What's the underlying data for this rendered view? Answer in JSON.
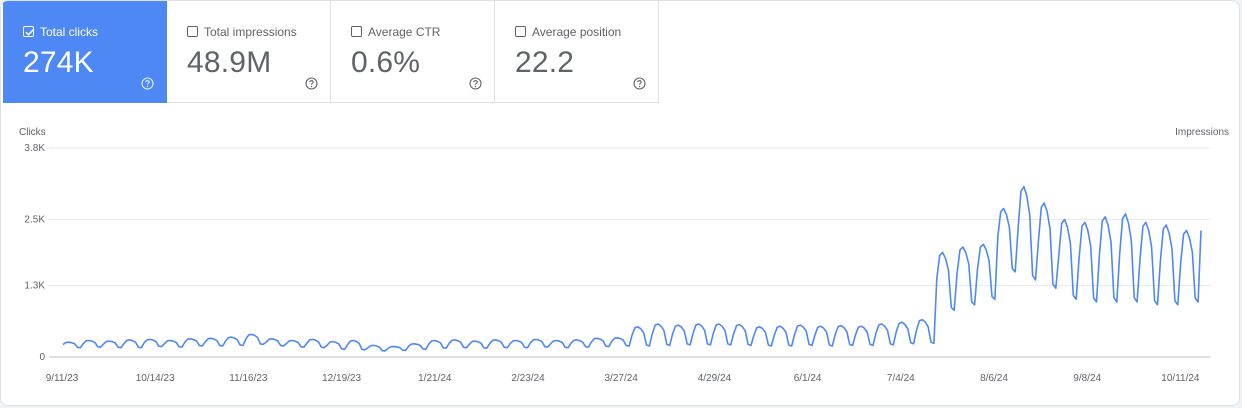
{
  "metrics": [
    {
      "label": "Total clicks",
      "value": "274K",
      "checked": true
    },
    {
      "label": "Total impressions",
      "value": "48.9M",
      "checked": false
    },
    {
      "label": "Average CTR",
      "value": "0.6%",
      "checked": false
    },
    {
      "label": "Average position",
      "value": "22.2",
      "checked": false
    }
  ],
  "icons": {
    "checkbox": "checkbox-icon",
    "help": "help-circle-icon"
  },
  "colors": {
    "active_tile": "#4e88f5",
    "series_line": "#4e88f5",
    "grid": "#e8eaed",
    "text": "#5f6368"
  },
  "chart_data": {
    "type": "line",
    "left_axis_label": "Clicks",
    "right_axis_label": "Impressions",
    "y_ticks": [
      "3.8K",
      "2.5K",
      "1.3K",
      "0"
    ],
    "y_tick_values": [
      3800,
      2500,
      1300,
      0
    ],
    "ylim": [
      0,
      3800
    ],
    "x_tick_labels": [
      "9/11/23",
      "10/14/23",
      "11/16/23",
      "12/19/23",
      "1/21/24",
      "2/23/24",
      "3/27/24",
      "4/29/24",
      "6/1/24",
      "7/4/24",
      "8/6/24",
      "9/8/24",
      "10/11/24"
    ],
    "x_start": "9/11/23",
    "x_end": "10/15/24",
    "grid": true,
    "legend": "none",
    "series": [
      {
        "color": "#4e88f5",
        "weekly_peaks_approx": [
          270,
          300,
          290,
          310,
          320,
          300,
          330,
          340,
          360,
          410,
          330,
          300,
          320,
          280,
          300,
          210,
          190,
          240,
          300,
          310,
          290,
          310,
          300,
          320,
          300,
          310,
          340,
          350,
          550,
          600,
          580,
          600,
          600,
          590,
          550,
          560,
          580,
          560,
          570,
          560,
          600,
          630,
          680,
          1900,
          2000,
          2050,
          2700,
          3100,
          2800,
          2500,
          2450,
          2550,
          2600,
          2450,
          2400,
          2300
        ],
        "weekly_troughs_approx": [
          170,
          180,
          170,
          170,
          190,
          180,
          200,
          200,
          210,
          230,
          200,
          180,
          170,
          140,
          130,
          110,
          120,
          140,
          160,
          170,
          160,
          170,
          170,
          180,
          170,
          180,
          190,
          200,
          200,
          210,
          220,
          220,
          220,
          210,
          200,
          200,
          210,
          200,
          210,
          210,
          220,
          240,
          250,
          850,
          950,
          1050,
          1550,
          1400,
          1250,
          1050,
          1000,
          1000,
          1000,
          950,
          950,
          1000
        ],
        "last_value_approx": 2300
      }
    ]
  }
}
